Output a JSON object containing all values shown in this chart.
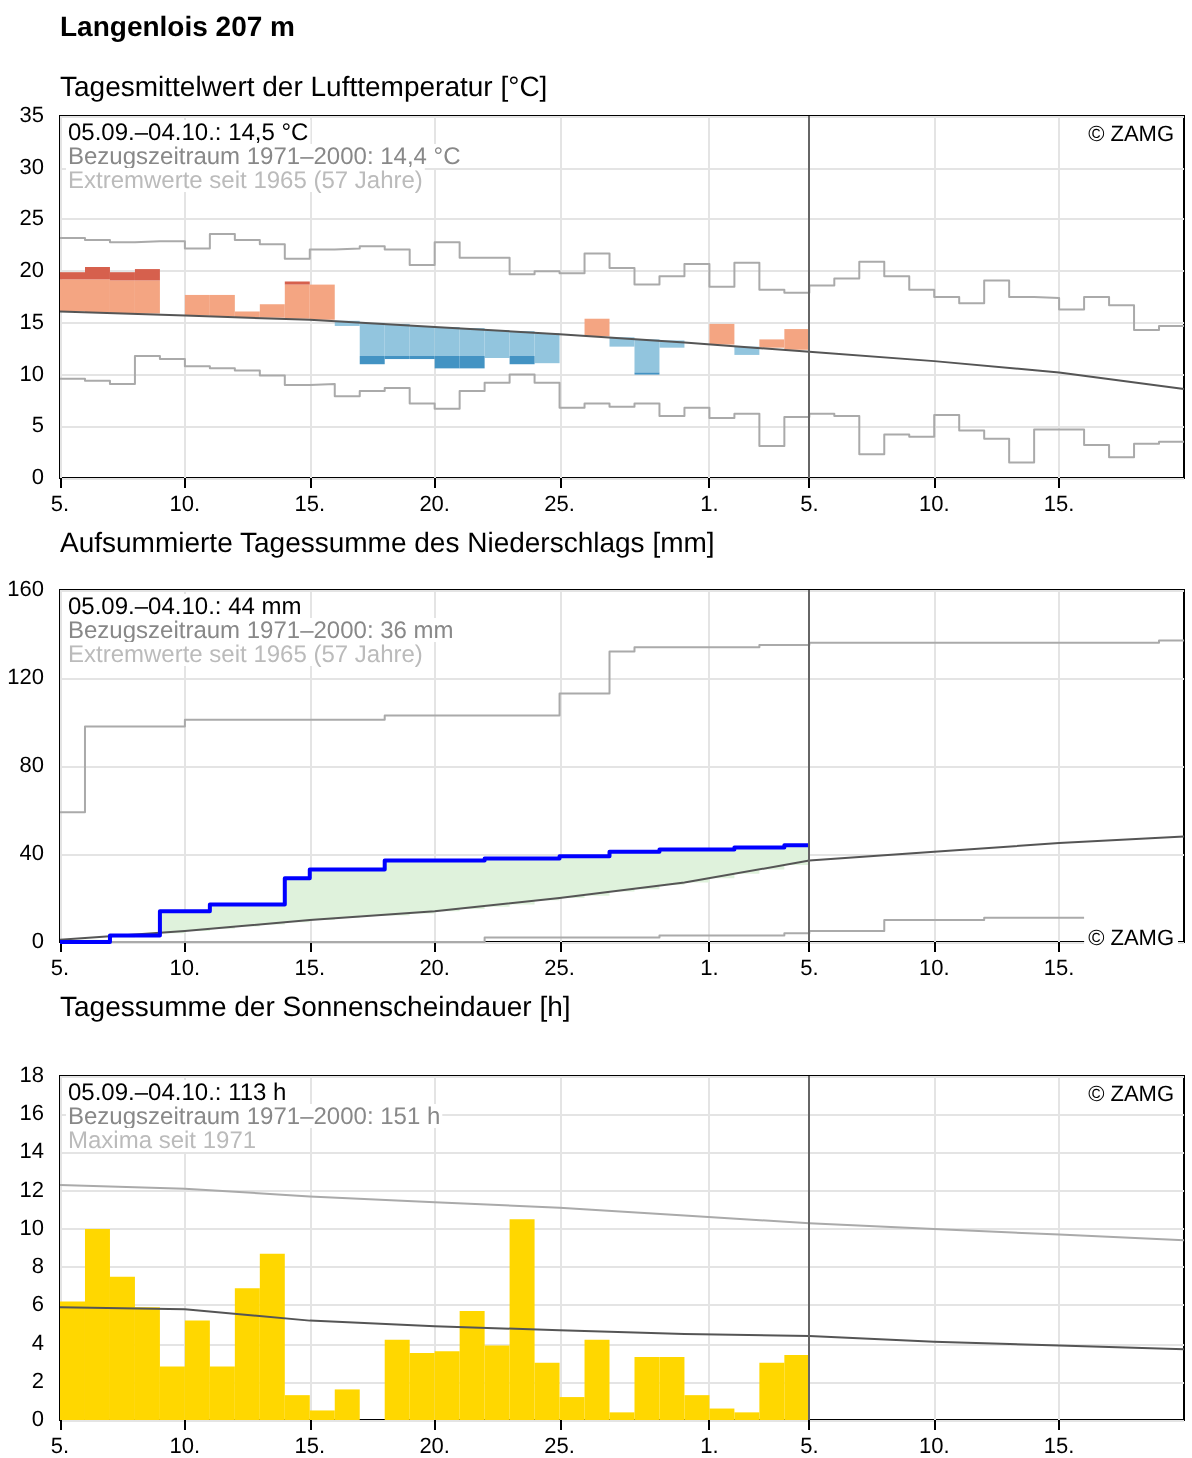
{
  "chart_data": [
    {
      "type": "bar",
      "title": "Langenlois 207 m",
      "subtitle": "Tagesmittelwert der Lufttemperatur [°C]",
      "annotations": [
        "05.09.–04.10.: 14,5 °C",
        "Bezugszeitraum 1971–2000: 14,4 °C",
        "Extremwerte seit 1965 (57 Jahre)",
        "© ZAMG"
      ],
      "xlim": [
        "--09-05",
        "--10-20"
      ],
      "xticks": [
        {
          "value": "--09-05",
          "label": "5."
        },
        {
          "value": "--09-10",
          "label": "10."
        },
        {
          "value": "--09-15",
          "label": "15."
        },
        {
          "value": "--09-20",
          "label": "20."
        },
        {
          "value": "--09-25",
          "label": "25."
        },
        {
          "value": "--10-01",
          "label": "1."
        },
        {
          "value": "--10-05",
          "label": "5."
        },
        {
          "value": "--10-10",
          "label": "10."
        },
        {
          "value": "--10-15",
          "label": "15."
        }
      ],
      "ylim": [
        0,
        35
      ],
      "yticks": [
        0,
        5,
        10,
        15,
        20,
        25,
        30,
        35
      ],
      "grid": true,
      "ref_lines": [
        {
          "axis": "x",
          "value": "--10-05",
          "color": "#666666"
        }
      ],
      "series": [
        {
          "type": "step",
          "color": "#aaaaaa",
          "x": [
            "--09-05",
            "--09-06",
            "--09-07",
            "--09-08",
            "--09-09",
            "--09-10",
            "--09-11",
            "--09-12",
            "--09-13",
            "--09-14",
            "--09-15",
            "--09-16",
            "--09-17",
            "--09-18",
            "--09-19",
            "--09-20",
            "--09-21",
            "--09-22",
            "--09-23",
            "--09-24",
            "--09-25",
            "--09-26",
            "--09-27",
            "--09-28",
            "--09-29",
            "--09-30",
            "--10-01",
            "--10-02",
            "--10-03",
            "--10-04",
            "--10-05",
            "--10-06",
            "--10-07",
            "--10-08",
            "--10-09",
            "--10-10",
            "--10-11",
            "--10-12",
            "--10-13",
            "--10-14",
            "--10-15",
            "--10-16",
            "--10-17",
            "--10-18",
            "--10-19",
            "--10-20"
          ],
          "values": [
            23.2,
            23.0,
            22.8,
            22.9,
            22.9,
            22.2,
            23.6,
            23.0,
            22.6,
            21.2,
            22.1,
            22.2,
            22.4,
            22.1,
            20.6,
            22.8,
            21.3,
            21.3,
            19.7,
            20.0,
            19.8,
            21.7,
            20.3,
            18.7,
            19.5,
            20.7,
            18.5,
            20.8,
            18.2,
            17.9,
            18.6,
            19.3,
            20.9,
            19.5,
            18.2,
            17.5,
            16.9,
            19.1,
            17.5,
            17.4,
            16.3,
            17.5,
            16.7,
            14.3,
            14.7,
            14.7
          ]
        },
        {
          "type": "step",
          "color": "#aaaaaa",
          "x": [
            "--09-05",
            "--09-06",
            "--09-07",
            "--09-08",
            "--09-09",
            "--09-10",
            "--09-11",
            "--09-12",
            "--09-13",
            "--09-14",
            "--09-15",
            "--09-16",
            "--09-17",
            "--09-18",
            "--09-19",
            "--09-20",
            "--09-21",
            "--09-22",
            "--09-23",
            "--09-24",
            "--09-25",
            "--09-26",
            "--09-27",
            "--09-28",
            "--09-29",
            "--09-30",
            "--10-01",
            "--10-02",
            "--10-03",
            "--10-04",
            "--10-05",
            "--10-06",
            "--10-07",
            "--10-08",
            "--10-09",
            "--10-10",
            "--10-11",
            "--10-12",
            "--10-13",
            "--10-14",
            "--10-15",
            "--10-16",
            "--10-17",
            "--10-18",
            "--10-19",
            "--10-20"
          ],
          "values": [
            9.6,
            9.4,
            9.1,
            11.8,
            11.5,
            10.8,
            10.6,
            10.4,
            9.9,
            9.0,
            9.1,
            7.9,
            8.4,
            8.7,
            7.2,
            6.7,
            8.4,
            9.2,
            10.0,
            9.2,
            6.8,
            7.2,
            6.9,
            7.2,
            6.0,
            6.8,
            5.8,
            6.2,
            3.1,
            5.9,
            6.2,
            6.0,
            2.3,
            4.2,
            4.0,
            6.1,
            4.6,
            3.8,
            1.5,
            4.7,
            4.7,
            3.2,
            2.0,
            3.3,
            3.5,
            3.5
          ]
        },
        {
          "x": [
            "--09-05T12:00",
            "--09-06T12:00",
            "--09-07T12:00",
            "--09-08T12:00",
            "--09-09T12:00",
            "--09-10T12:00",
            "--09-11T12:00",
            "--09-12T12:00",
            "--09-13T12:00",
            "--09-14T12:00",
            "--09-15T12:00",
            "--09-16T12:00",
            "--09-17T12:00",
            "--09-18T12:00",
            "--09-19T12:00",
            "--09-20T12:00",
            "--09-21T12:00",
            "--09-22T12:00",
            "--09-23T12:00",
            "--09-24T12:00",
            "--09-25T12:00",
            "--09-26T12:00",
            "--09-27T12:00",
            "--09-28T12:00",
            "--09-29T12:00",
            "--09-30T12:00",
            "--10-01T12:00",
            "--10-02T12:00",
            "--10-03T12:00",
            "--10-04T12:00"
          ],
          "base": [
            16.1,
            16.0,
            15.9,
            15.9,
            null,
            15.7,
            15.6,
            15.5,
            15.5,
            15.4,
            15.3,
            15.2,
            15.0,
            14.9,
            14.7,
            14.6,
            14.5,
            14.3,
            14.2,
            14.0,
            null,
            13.7,
            13.6,
            13.4,
            13.3,
            null,
            12.9,
            12.7,
            12.6,
            12.4
          ],
          "values": [
            3.1,
            3.2,
            3.2,
            3.2,
            null,
            2.0,
            2.1,
            0.6,
            1.3,
            3.3,
            3.4,
            -0.5,
            -3.2,
            -3.1,
            -2.9,
            -2.8,
            -2.7,
            -2.7,
            -2.4,
            -2.9,
            null,
            1.7,
            -0.9,
            -3.2,
            -0.7,
            null,
            2.0,
            -0.8,
            0.8,
            2.0
          ],
          "colors": [
            "#f4a582",
            "#f4a582",
            "#f4a582",
            "#f4a582",
            null,
            "#f4a582",
            "#f4a582",
            "#f4a582",
            "#f4a582",
            "#f4a582",
            "#f4a582",
            "#92c5de",
            "#92c5de",
            "#92c5de",
            "#92c5de",
            "#92c5de",
            "#92c5de",
            "#92c5de",
            "#92c5de",
            "#92c5de",
            null,
            "#f4a582",
            "#92c5de",
            "#92c5de",
            "#92c5de",
            null,
            "#f4a582",
            "#92c5de",
            "#f4a582",
            "#f4a582"
          ]
        },
        {
          "x": [
            "--09-05T12:00",
            "--09-06T12:00",
            "--09-07T12:00",
            "--09-08T12:00",
            "--09-14T12:00",
            "--09-17T12:00",
            "--09-18T12:00",
            "--09-19T12:00",
            "--09-20T12:00",
            "--09-21T12:00",
            "--09-23T12:00",
            "--09-28T12:00"
          ],
          "base": [
            19.2,
            19.2,
            19.1,
            19.1,
            18.7,
            11.8,
            11.8,
            11.8,
            11.8,
            11.8,
            11.8,
            10.2
          ],
          "values": [
            0.7,
            1.2,
            0.8,
            1.1,
            0.3,
            -0.8,
            -0.3,
            -0.3,
            -1.2,
            -1.2,
            -0.8,
            -0.2
          ],
          "colors": [
            "#d6604d",
            "#d6604d",
            "#d6604d",
            "#d6604d",
            "#d6604d",
            "#4393c3",
            "#4393c3",
            "#4393c3",
            "#4393c3",
            "#4393c3",
            "#4393c3",
            "#4393c3"
          ]
        },
        {
          "type": "line",
          "color": "#555555",
          "x": [
            "--09-05",
            "--09-10",
            "--09-15",
            "--09-20",
            "--09-25",
            "--09-30",
            "--10-05",
            "--10-10",
            "--10-15",
            "--10-20"
          ],
          "values": [
            16.1,
            15.7,
            15.3,
            14.6,
            13.9,
            13.1,
            12.2,
            11.3,
            10.2,
            8.6
          ]
        }
      ]
    },
    {
      "type": "step",
      "title": "Aufsummierte Tagessumme des Niederschlags [mm]",
      "annotations": [
        "05.09.–04.10.: 44 mm",
        "Bezugszeitraum 1971–2000: 36 mm",
        "Extremwerte seit 1965 (57 Jahre)",
        "© ZAMG"
      ],
      "xlim": [
        "--09-05",
        "--10-20"
      ],
      "xticks": [
        {
          "value": "--09-05",
          "label": "5."
        },
        {
          "value": "--09-10",
          "label": "10."
        },
        {
          "value": "--09-15",
          "label": "15."
        },
        {
          "value": "--09-20",
          "label": "20."
        },
        {
          "value": "--09-25",
          "label": "25."
        },
        {
          "value": "--10-01",
          "label": "1."
        },
        {
          "value": "--10-05",
          "label": "5."
        },
        {
          "value": "--10-10",
          "label": "10."
        },
        {
          "value": "--10-15",
          "label": "15."
        }
      ],
      "ylim": [
        0,
        160
      ],
      "yticks": [
        0,
        40,
        80,
        120,
        160
      ],
      "grid": true,
      "ref_lines": [
        {
          "axis": "x",
          "value": "--10-05",
          "color": "#666666"
        }
      ],
      "series": [
        {
          "color": "#aaaaaa",
          "x": [
            "--09-05",
            "--09-06",
            "--09-10",
            "--09-18",
            "--09-25",
            "--09-27",
            "--09-28",
            "--10-03",
            "--10-05",
            "--10-19",
            "--10-20"
          ],
          "values": [
            59,
            98,
            101,
            103,
            113,
            132,
            134,
            135,
            136,
            137,
            137
          ]
        },
        {
          "color": "#aaaaaa",
          "x": [
            "--09-05",
            "--09-22",
            "--09-29",
            "--10-04",
            "--10-05",
            "--10-08",
            "--10-12",
            "--10-16"
          ],
          "values": [
            0,
            2,
            3,
            4,
            5,
            10,
            11,
            11
          ]
        },
        {
          "type": "line",
          "color": "#555555",
          "x": [
            "--09-05",
            "--09-10",
            "--09-15",
            "--09-20",
            "--09-25",
            "--09-30",
            "--10-05",
            "--10-10",
            "--10-15",
            "--10-20"
          ],
          "values": [
            1,
            5,
            10,
            14,
            20,
            27,
            37,
            41,
            45,
            48
          ]
        },
        {
          "color": "#0000ff",
          "x": [
            "--09-05",
            "--09-06",
            "--09-07",
            "--09-08",
            "--09-09",
            "--09-10",
            "--09-11",
            "--09-12",
            "--09-13",
            "--09-14",
            "--09-15",
            "--09-16",
            "--09-17",
            "--09-18",
            "--09-19",
            "--09-20",
            "--09-21",
            "--09-22",
            "--09-23",
            "--09-24",
            "--09-25",
            "--09-26",
            "--09-27",
            "--09-28",
            "--09-29",
            "--09-30",
            "--10-01",
            "--10-02",
            "--10-03",
            "--10-04",
            "--10-05"
          ],
          "values": [
            0,
            0,
            3,
            3,
            14,
            14,
            17,
            17,
            17,
            29,
            33,
            33,
            33,
            37,
            37,
            37,
            37,
            38,
            38,
            38,
            39,
            39,
            41,
            41,
            42,
            42,
            42,
            43,
            43,
            44,
            44
          ],
          "lower": [
            1,
            1,
            2,
            3,
            4,
            5,
            6,
            7,
            8,
            9,
            10,
            11,
            12,
            12,
            13,
            14,
            15,
            16,
            17,
            19,
            20,
            21,
            23,
            24,
            26,
            27,
            29,
            31,
            33,
            35,
            37
          ],
          "upper": [
            0,
            0,
            3,
            3,
            14,
            14,
            17,
            17,
            17,
            29,
            33,
            33,
            33,
            37,
            37,
            37,
            37,
            38,
            38,
            38,
            39,
            39,
            41,
            41,
            42,
            42,
            42,
            43,
            43,
            44,
            44
          ]
        }
      ]
    },
    {
      "type": "bar",
      "title": "Tagessumme der Sonnenscheindauer [h]",
      "annotations": [
        "05.09.–04.10.: 113 h",
        "Bezugszeitraum 1971–2000: 151 h",
        "Maxima seit 1971",
        "© ZAMG"
      ],
      "xlim": [
        "--09-05",
        "--10-20"
      ],
      "xticks": [
        {
          "value": "--09-05",
          "label": "5."
        },
        {
          "value": "--09-10",
          "label": "10."
        },
        {
          "value": "--09-15",
          "label": "15."
        },
        {
          "value": "--09-20",
          "label": "20."
        },
        {
          "value": "--09-25",
          "label": "25."
        },
        {
          "value": "--10-01",
          "label": "1."
        },
        {
          "value": "--10-05",
          "label": "5."
        },
        {
          "value": "--10-10",
          "label": "10."
        },
        {
          "value": "--10-15",
          "label": "15."
        }
      ],
      "ylim": [
        0,
        18
      ],
      "yticks": [
        0,
        2,
        4,
        6,
        8,
        10,
        12,
        14,
        16,
        18
      ],
      "grid": true,
      "ref_lines": [
        {
          "axis": "x",
          "value": "--10-05",
          "color": "#666666"
        }
      ],
      "series": [
        {
          "color": "#ffd700",
          "x": [
            "--09-05T12:00",
            "--09-06T12:00",
            "--09-07T12:00",
            "--09-08T12:00",
            "--09-09T12:00",
            "--09-10T12:00",
            "--09-11T12:00",
            "--09-12T12:00",
            "--09-13T12:00",
            "--09-14T12:00",
            "--09-15T12:00",
            "--09-16T12:00",
            "--09-17T12:00",
            "--09-18T12:00",
            "--09-19T12:00",
            "--09-20T12:00",
            "--09-21T12:00",
            "--09-22T12:00",
            "--09-23T12:00",
            "--09-24T12:00",
            "--09-25T12:00",
            "--09-26T12:00",
            "--09-27T12:00",
            "--09-28T12:00",
            "--09-29T12:00",
            "--09-30T12:00",
            "--10-01T12:00",
            "--10-02T12:00",
            "--10-03T12:00",
            "--10-04T12:00"
          ],
          "values": [
            6.2,
            10.0,
            7.5,
            5.9,
            2.8,
            5.2,
            2.8,
            6.9,
            8.7,
            1.3,
            0.5,
            1.6,
            0,
            4.2,
            3.5,
            3.6,
            5.7,
            3.9,
            10.5,
            3.0,
            1.2,
            4.2,
            0.4,
            3.3,
            3.3,
            1.3,
            0.6,
            0.4,
            3.0,
            3.4
          ]
        },
        {
          "type": "line",
          "color": "#aaaaaa",
          "x": [
            "--09-05",
            "--09-10",
            "--09-15",
            "--09-20",
            "--09-25",
            "--09-30",
            "--10-05",
            "--10-10",
            "--10-15",
            "--10-20"
          ],
          "values": [
            12.3,
            12.1,
            11.7,
            11.4,
            11.1,
            10.7,
            10.3,
            10.0,
            9.7,
            9.4
          ]
        },
        {
          "type": "line",
          "color": "#555555",
          "x": [
            "--09-05",
            "--09-10",
            "--09-15",
            "--09-20",
            "--09-25",
            "--09-30",
            "--10-05",
            "--10-10",
            "--10-15",
            "--10-20"
          ],
          "values": [
            5.9,
            5.8,
            5.2,
            4.9,
            4.7,
            4.5,
            4.4,
            4.1,
            3.9,
            3.7
          ]
        }
      ]
    }
  ]
}
